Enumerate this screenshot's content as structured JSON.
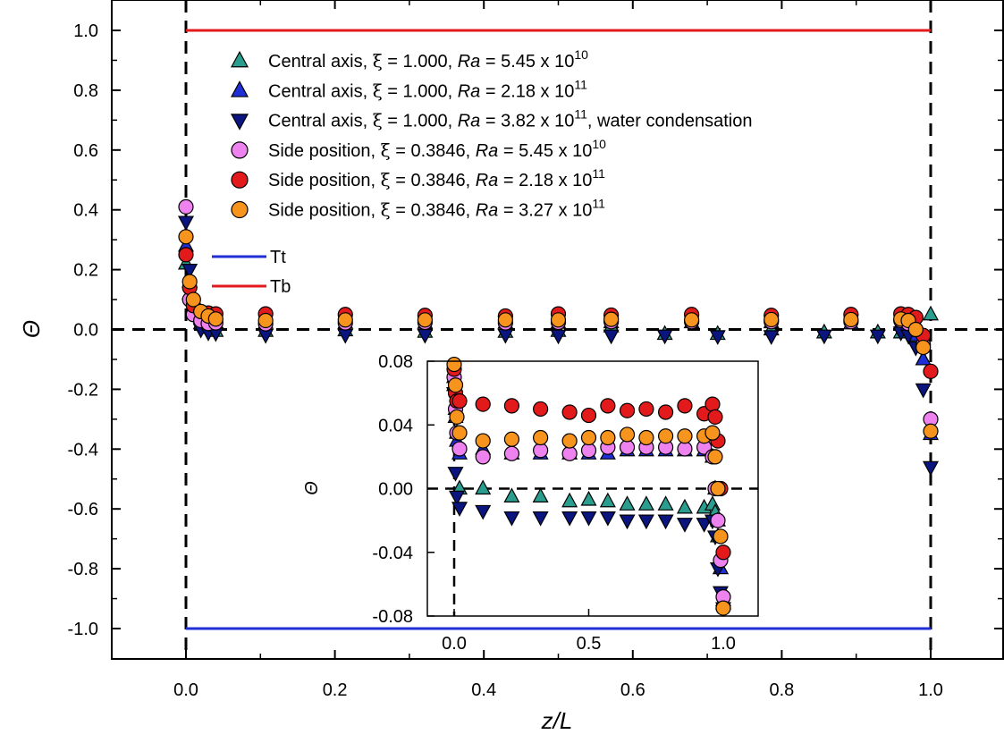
{
  "chart_data": [
    {
      "type": "scatter",
      "xlabel": "z/L",
      "ylabel": "Θ",
      "xlim": [
        -0.1,
        1.1
      ],
      "ylim": [
        -1.1,
        1.1
      ],
      "xticks": [
        "0.0",
        "0.2",
        "0.4",
        "0.6",
        "0.8",
        "1.0"
      ],
      "yticks": [
        "1.0",
        "0.8",
        "0.6",
        "0.4",
        "0.2",
        "0.0",
        "-0.2",
        "-0.4",
        "-0.6",
        "-0.8",
        "-1.0"
      ],
      "grid": false,
      "legend_position": "top-center",
      "series": [
        {
          "name_parts": [
            "Central axis, ",
            "ξ",
            " = 1.000, ",
            "Ra",
            " = 5.45 x 10",
            "10",
            ""
          ],
          "marker": "triangle-up",
          "color": "#2a9d8f",
          "x": [
            0.0,
            0.005,
            0.01,
            0.02,
            0.03,
            0.04,
            0.107,
            0.214,
            0.321,
            0.429,
            0.5,
            0.571,
            0.643,
            0.714,
            0.786,
            0.857,
            0.929,
            0.96,
            0.97,
            0.98,
            0.99,
            1.0
          ],
          "y": [
            0.22,
            0.12,
            0.06,
            0.02,
            0.005,
            -0.005,
            -0.005,
            -0.003,
            -0.008,
            -0.008,
            -0.005,
            0.01,
            -0.015,
            -0.015,
            0.0,
            -0.01,
            -0.01,
            -0.01,
            0.0,
            -0.03,
            -0.1,
            0.05
          ]
        },
        {
          "name_parts": [
            "Central axis, ",
            "ξ",
            " = 1.000, ",
            "Ra",
            " = 2.18 x 10",
            "11",
            ""
          ],
          "marker": "triangle-up",
          "color": "#1f2fd6",
          "x": [
            0.0,
            0.005,
            0.01,
            0.02,
            0.03,
            0.04,
            0.107,
            0.214,
            0.321,
            0.429,
            0.5,
            0.571,
            0.679,
            0.786,
            0.893,
            0.96,
            0.97,
            0.98,
            0.99,
            1.0
          ],
          "y": [
            0.28,
            0.16,
            0.08,
            0.04,
            0.025,
            0.022,
            0.022,
            0.022,
            0.022,
            0.022,
            0.022,
            0.024,
            0.024,
            0.024,
            0.02,
            0.02,
            0.01,
            -0.02,
            -0.1,
            -0.35
          ]
        },
        {
          "name_parts": [
            "Central axis, ",
            "ξ",
            " = 1.000, ",
            "Ra",
            " = 3.82 x 10",
            "11",
            ", water condensation"
          ],
          "marker": "triangle-down",
          "color": "#0a1580",
          "x": [
            0.0,
            0.005,
            0.01,
            0.02,
            0.03,
            0.04,
            0.107,
            0.214,
            0.321,
            0.429,
            0.5,
            0.571,
            0.643,
            0.714,
            0.786,
            0.857,
            0.929,
            0.96,
            0.97,
            0.98,
            0.99,
            1.0
          ],
          "y": [
            0.36,
            0.2,
            0.06,
            0.0,
            -0.01,
            -0.012,
            -0.018,
            -0.018,
            -0.018,
            -0.018,
            -0.02,
            -0.02,
            -0.02,
            -0.022,
            -0.022,
            -0.02,
            -0.02,
            -0.01,
            -0.02,
            -0.06,
            -0.2,
            -0.46
          ]
        },
        {
          "name_parts": [
            "Side position, ",
            "ξ",
            " = 0.3846, ",
            "Ra",
            " = 5.45 x 10",
            "10",
            ""
          ],
          "marker": "circle",
          "color": "#ee82ee",
          "x": [
            0.0,
            0.005,
            0.01,
            0.02,
            0.03,
            0.04,
            0.107,
            0.214,
            0.321,
            0.429,
            0.5,
            0.571,
            0.679,
            0.786,
            0.893,
            0.96,
            0.97,
            0.98,
            0.99,
            1.0
          ],
          "y": [
            0.41,
            0.1,
            0.05,
            0.03,
            0.02,
            0.022,
            0.019,
            0.022,
            0.024,
            0.022,
            0.024,
            0.026,
            0.026,
            0.026,
            0.026,
            0.03,
            0.02,
            0.0,
            -0.05,
            -0.3
          ]
        },
        {
          "name_parts": [
            "Side position, ",
            "ξ",
            " = 0.3846, ",
            "Ra",
            " = 2.18 x 10",
            "11",
            ""
          ],
          "marker": "circle",
          "color": "#e31a1c",
          "x": [
            0.0,
            0.005,
            0.01,
            0.02,
            0.03,
            0.04,
            0.107,
            0.214,
            0.321,
            0.429,
            0.5,
            0.571,
            0.679,
            0.786,
            0.893,
            0.96,
            0.97,
            0.98,
            0.99,
            1.0
          ],
          "y": [
            0.25,
            0.14,
            0.08,
            0.06,
            0.055,
            0.052,
            0.052,
            0.05,
            0.047,
            0.045,
            0.052,
            0.048,
            0.05,
            0.047,
            0.05,
            0.052,
            0.05,
            0.04,
            -0.02,
            -0.14
          ]
        },
        {
          "name_parts": [
            "Side position, ",
            "ξ",
            " = 0.3846, ",
            "Ra",
            " = 3.27 x 10",
            "11",
            ""
          ],
          "marker": "circle",
          "color": "#f7941d",
          "x": [
            0.0,
            0.005,
            0.01,
            0.02,
            0.03,
            0.04,
            0.107,
            0.214,
            0.321,
            0.429,
            0.5,
            0.571,
            0.679,
            0.786,
            0.893,
            0.96,
            0.97,
            0.98,
            0.99,
            1.0
          ],
          "y": [
            0.31,
            0.16,
            0.1,
            0.06,
            0.045,
            0.035,
            0.03,
            0.032,
            0.032,
            0.032,
            0.032,
            0.034,
            0.032,
            0.033,
            0.033,
            0.035,
            0.03,
            0.0,
            -0.06,
            -0.34
          ]
        }
      ],
      "lines": [
        {
          "name": "Tt",
          "color": "#1f2fd6",
          "y": -1.0,
          "x": [
            0.0,
            1.0
          ]
        },
        {
          "name": "Tb",
          "color": "#e31a1c",
          "y": 1.0,
          "x": [
            0.0,
            1.0
          ]
        }
      ],
      "reference_lines": [
        {
          "orientation": "horizontal",
          "value": 0.0,
          "style": "dashed"
        },
        {
          "orientation": "vertical",
          "value": 0.0,
          "style": "dashed"
        },
        {
          "orientation": "vertical",
          "value": 1.0,
          "style": "dashed"
        }
      ]
    },
    {
      "type": "scatter",
      "role": "inset",
      "ylabel": "Θ",
      "xlim": [
        -0.1,
        1.1
      ],
      "ylim": [
        -0.08,
        0.08
      ],
      "xticks": [
        "0.0",
        "0.5",
        "1.0"
      ],
      "yticks": [
        "0.08",
        "0.04",
        "0.00",
        "-0.04",
        "-0.08"
      ],
      "series": [
        {
          "name": "Central axis, ξ = 1.000, Ra = 5.45 x 10^10",
          "marker": "triangle-up",
          "color": "#2a9d8f",
          "x": [
            0.0,
            0.005,
            0.01,
            0.02,
            0.107,
            0.214,
            0.321,
            0.429,
            0.5,
            0.571,
            0.643,
            0.714,
            0.786,
            0.857,
            0.929,
            0.96,
            0.97,
            0.98,
            0.99,
            1.0
          ],
          "y": [
            0.07,
            0.05,
            0.035,
            0.0,
            0.0,
            -0.005,
            -0.005,
            -0.008,
            -0.007,
            -0.008,
            -0.01,
            -0.01,
            -0.01,
            -0.012,
            -0.012,
            -0.01,
            -0.015,
            -0.03,
            -0.05,
            -0.072
          ]
        },
        {
          "name": "Central axis, ξ = 1.000, Ra = 2.18 x 10^11",
          "marker": "triangle-up",
          "color": "#1f2fd6",
          "x": [
            0.0,
            0.005,
            0.01,
            0.02,
            0.107,
            0.214,
            0.321,
            0.429,
            0.5,
            0.571,
            0.643,
            0.714,
            0.786,
            0.857,
            0.929,
            0.96,
            0.97,
            0.98,
            0.99,
            1.0
          ],
          "y": [
            0.065,
            0.045,
            0.03,
            0.022,
            0.025,
            0.022,
            0.022,
            0.022,
            0.022,
            0.022,
            0.024,
            0.024,
            0.024,
            0.024,
            0.024,
            0.02,
            0.0,
            -0.02,
            -0.05,
            -0.07
          ]
        },
        {
          "name": "Central axis, ξ = 1.000, Ra = 3.82 x 10^11, water condensation",
          "marker": "triangle-down",
          "color": "#0a1580",
          "x": [
            0.0,
            0.005,
            0.01,
            0.02,
            0.107,
            0.214,
            0.321,
            0.429,
            0.5,
            0.571,
            0.643,
            0.714,
            0.786,
            0.857,
            0.929,
            0.96,
            0.97,
            0.98,
            0.99,
            1.0
          ],
          "y": [
            0.06,
            0.01,
            -0.005,
            -0.012,
            -0.014,
            -0.018,
            -0.018,
            -0.018,
            -0.018,
            -0.018,
            -0.02,
            -0.02,
            -0.02,
            -0.022,
            -0.022,
            -0.02,
            -0.03,
            -0.05,
            -0.065,
            -0.075
          ]
        },
        {
          "name": "Side position, ξ = 0.3846, Ra = 5.45 x 10^10",
          "marker": "circle",
          "color": "#ee82ee",
          "x": [
            0.0,
            0.005,
            0.01,
            0.02,
            0.107,
            0.214,
            0.321,
            0.429,
            0.5,
            0.571,
            0.643,
            0.714,
            0.786,
            0.857,
            0.929,
            0.96,
            0.97,
            0.98,
            0.99,
            1.0
          ],
          "y": [
            0.07,
            0.05,
            0.035,
            0.025,
            0.02,
            0.022,
            0.024,
            0.022,
            0.024,
            0.026,
            0.026,
            0.026,
            0.026,
            0.025,
            0.026,
            0.02,
            0.0,
            -0.02,
            -0.045,
            -0.068
          ]
        },
        {
          "name": "Side position, ξ = 0.3846, Ra = 2.18 x 10^11",
          "marker": "circle",
          "color": "#e31a1c",
          "x": [
            0.0,
            0.005,
            0.01,
            0.02,
            0.107,
            0.214,
            0.321,
            0.429,
            0.5,
            0.571,
            0.643,
            0.714,
            0.786,
            0.857,
            0.929,
            0.96,
            0.97,
            0.98,
            0.99,
            1.0
          ],
          "y": [
            0.075,
            0.06,
            0.055,
            0.055,
            0.053,
            0.052,
            0.05,
            0.048,
            0.046,
            0.052,
            0.049,
            0.05,
            0.048,
            0.052,
            0.047,
            0.053,
            0.045,
            0.03,
            0.0,
            -0.04
          ]
        },
        {
          "name": "Side position, ξ = 0.3846, Ra = 3.27 x 10^11",
          "marker": "circle",
          "color": "#f7941d",
          "x": [
            0.0,
            0.005,
            0.01,
            0.02,
            0.107,
            0.214,
            0.321,
            0.429,
            0.5,
            0.571,
            0.643,
            0.714,
            0.786,
            0.857,
            0.929,
            0.96,
            0.97,
            0.98,
            0.99,
            1.0
          ],
          "y": [
            0.078,
            0.065,
            0.045,
            0.035,
            0.03,
            0.031,
            0.032,
            0.03,
            0.032,
            0.032,
            0.034,
            0.032,
            0.033,
            0.033,
            0.033,
            0.035,
            0.02,
            0.0,
            -0.03,
            -0.075
          ]
        }
      ],
      "reference_lines": [
        {
          "orientation": "horizontal",
          "value": 0.0,
          "style": "dashed"
        },
        {
          "orientation": "vertical",
          "value": 0.0,
          "style": "dashed"
        }
      ]
    }
  ]
}
